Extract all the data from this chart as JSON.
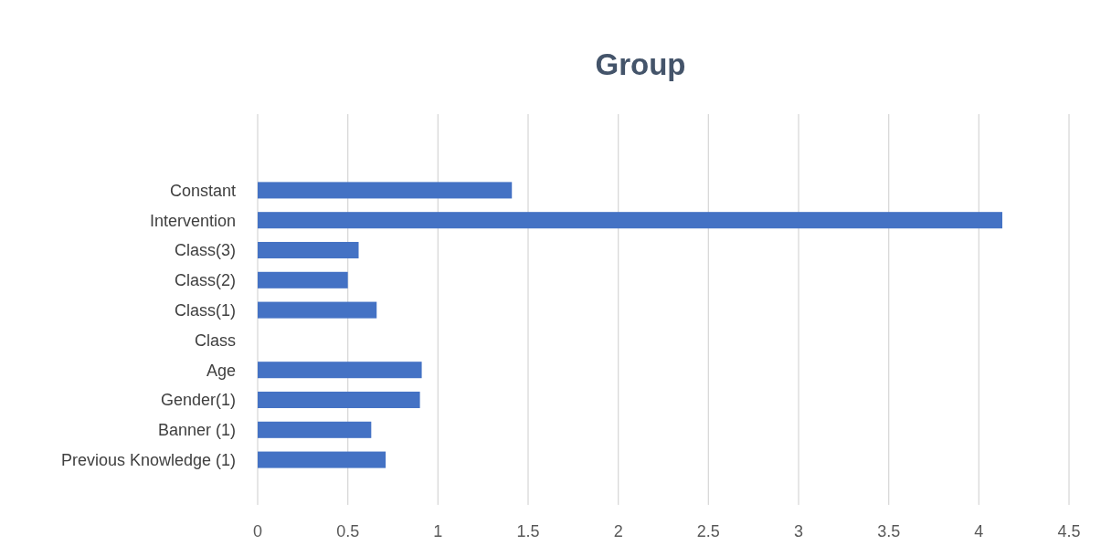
{
  "chart_data": {
    "type": "bar",
    "orientation": "horizontal",
    "title": "Group",
    "categories": [
      "Constant",
      "Intervention",
      "Class(3)",
      "Class(2)",
      "Class(1)",
      "Class",
      "Age",
      "Gender(1)",
      "Banner (1)",
      "Previous Knowledge (1)"
    ],
    "values": [
      1.41,
      4.13,
      0.56,
      0.5,
      0.66,
      null,
      0.91,
      0.9,
      0.63,
      0.71
    ],
    "color": "#4472c4",
    "xlim": [
      0,
      4.5
    ],
    "xticks": [
      0,
      0.5,
      1,
      1.5,
      2,
      2.5,
      3,
      3.5,
      4,
      4.5
    ],
    "grid": "x"
  }
}
